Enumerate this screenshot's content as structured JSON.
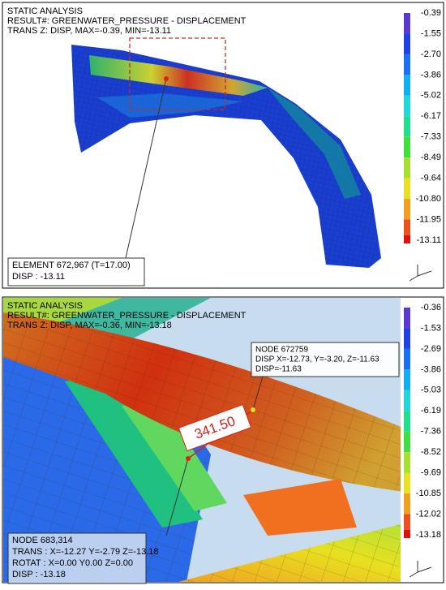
{
  "panels": [
    {
      "header": [
        "STATIC ANALYSIS",
        "RESULT#: GREENWATER_PRESSURE - DISPLACEMENT",
        "TRANS Z: DISP, MAX=-0.39, MIN=-13.11"
      ],
      "legend": [
        "-0.39",
        "-1.55",
        "-2.70",
        "-3.86",
        "-5.02",
        "-6.17",
        "-7.33",
        "-8.49",
        "-9.64",
        "-10.80",
        "-11.95",
        "-13.11"
      ],
      "callouts": [
        [
          "ELEMENT 672,967 (T=17.00)",
          "DISP : -13.11"
        ]
      ]
    },
    {
      "header": [
        "STATIC ANALYSIS",
        "RESULT#: GREENWATER_PRESSURE - DISPLACEMENT",
        "TRANS Z: DISP, MAX=-0.36, MIN=-13.18"
      ],
      "legend": [
        "-0.36",
        "-1.53",
        "-2.69",
        "-3.86",
        "-5.03",
        "-6.19",
        "-7.36",
        "-8.52",
        "-9.69",
        "-10.85",
        "-12.02",
        "-13.18"
      ],
      "callouts": [
        [
          "NODE 672759",
          "DISP X=-12.73, Y=-3.20, Z=-11.63",
          "DISP=-11.63"
        ],
        [
          "NODE 683,314",
          "TRANS : X=-12.27  Y=-2.79  Z=-13.18",
          "ROTAT : X=0.00  Y0.00  Z=0.00",
          "DISP : -13.18"
        ]
      ],
      "dimension": "341.50"
    }
  ]
}
